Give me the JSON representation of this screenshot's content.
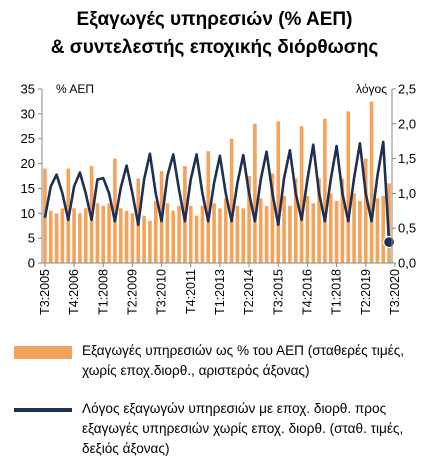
{
  "title": {
    "line1": "Εξαγωγές υπηρεσιών (% ΑΕΠ)",
    "line2": "& συντελεστής εποχικής διόρθωσης"
  },
  "colors": {
    "bar": "#f5a35b",
    "line": "#1d2f54",
    "marker": "#1d2f54"
  },
  "legend": {
    "bar_label": "Εξαγωγές υπηρεσιών ως % του ΑΕΠ (σταθερές τιμές, χωρίς εποχ.διορθ., αριστερός άξονας)",
    "line_label": "Λόγος εξαγωγών υπηρεσιών με εποχ. διορθ. προς εξαγωγές υπηρεσιών χωρίς εποχ. διορθ. (σταθ. τιμές, δεξιός άξονας)"
  },
  "chart_data": {
    "type": "bar+line",
    "title": "Εξαγωγές υπηρεσιών (% ΑΕΠ) & συντελεστής εποχικής διόρθωσης",
    "left_axis": {
      "label": "% ΑΕΠ",
      "ylim": [
        0,
        35
      ],
      "ticks": [
        0,
        5,
        10,
        15,
        20,
        25,
        30,
        35
      ]
    },
    "right_axis": {
      "label": "λόγος",
      "ylim": [
        0,
        2.5
      ],
      "ticks": [
        "0,0",
        "0,5",
        "1,0",
        "1,5",
        "2,0",
        "2,5"
      ]
    },
    "x_tick_labels": [
      "Τ3:2005",
      "Τ4:2006",
      "Τ1:2008",
      "Τ2:2009",
      "Τ3:2010",
      "Τ4:2011",
      "Τ1:2013",
      "Τ2:2014",
      "Τ3:2015",
      "Τ4:2016",
      "Τ1:2018",
      "Τ2:2019",
      "Τ3:2020"
    ],
    "x_tick_every": 5,
    "grid": false,
    "series": [
      {
        "name": "Εξαγωγές υπηρεσιών ως % του ΑΕΠ (σταθερές τιμές, χωρίς εποχ.διορθ., αριστερός άξονας)",
        "type": "bar",
        "axis": "left",
        "values": [
          19.0,
          10.5,
          10.0,
          11.0,
          19.0,
          11.0,
          10.0,
          11.0,
          19.5,
          12.0,
          11.5,
          12.0,
          21.0,
          11.0,
          10.5,
          10.0,
          17.0,
          9.5,
          8.5,
          12.5,
          18.5,
          12.0,
          10.5,
          11.5,
          19.5,
          11.5,
          9.5,
          11.5,
          22.5,
          12.0,
          11.0,
          13.0,
          25.0,
          11.5,
          11.0,
          17.5,
          28.0,
          13.0,
          11.5,
          18.0,
          28.5,
          13.5,
          11.5,
          17.0,
          27.5,
          13.5,
          12.0,
          17.0,
          29.0,
          14.0,
          12.5,
          17.0,
          30.5,
          14.0,
          12.5,
          21.0,
          32.5,
          13.0,
          13.5,
          16.0
        ]
      },
      {
        "name": "Λόγος εξαγωγών υπηρεσιών με εποχ. διορθ. προς εξαγωγές υπηρεσιών χωρίς εποχ. διορθ. (σταθ. τιμές, δεξιός άξονας)",
        "type": "line",
        "axis": "right",
        "values": [
          0.65,
          1.1,
          1.27,
          1.0,
          0.62,
          1.1,
          1.3,
          1.0,
          0.62,
          1.2,
          1.22,
          1.0,
          0.6,
          1.08,
          1.4,
          1.0,
          0.55,
          1.2,
          1.57,
          1.0,
          0.6,
          1.25,
          1.56,
          1.05,
          0.6,
          1.2,
          1.56,
          1.0,
          0.6,
          1.15,
          1.54,
          1.0,
          0.6,
          1.15,
          1.55,
          1.0,
          0.6,
          1.2,
          1.6,
          1.0,
          0.55,
          1.22,
          1.62,
          1.0,
          0.62,
          1.2,
          1.7,
          1.0,
          0.6,
          1.2,
          1.68,
          1.0,
          0.6,
          1.22,
          1.72,
          1.0,
          0.6,
          1.25,
          1.74,
          0.3
        ]
      }
    ],
    "last_point_marker": true
  }
}
